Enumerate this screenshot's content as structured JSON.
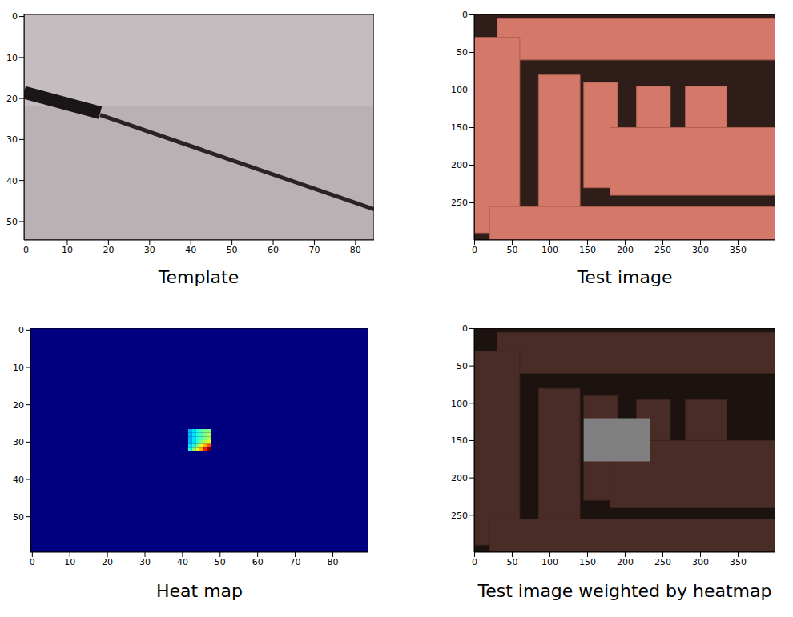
{
  "chart_data": [
    {
      "type": "image",
      "title": "Template",
      "xlim": [
        -0.5,
        84.5
      ],
      "ylim": [
        54.5,
        -0.5
      ],
      "xticks": [
        0,
        10,
        20,
        30,
        40,
        50,
        60,
        70,
        80
      ],
      "yticks": [
        0,
        10,
        20,
        30,
        40,
        50
      ]
    },
    {
      "type": "image",
      "title": "Test image",
      "xlim": [
        -0.5,
        399.5
      ],
      "ylim": [
        299.5,
        -0.5
      ],
      "xticks": [
        0,
        50,
        100,
        150,
        200,
        250,
        300,
        350
      ],
      "yticks": [
        0,
        50,
        100,
        150,
        200,
        250
      ]
    },
    {
      "type": "heatmap",
      "title": "Heat map",
      "xlim": [
        -0.5,
        89.5
      ],
      "ylim": [
        59.5,
        -0.5
      ],
      "xticks": [
        0,
        10,
        20,
        30,
        40,
        50,
        60,
        70,
        80
      ],
      "yticks": [
        0,
        10,
        20,
        30,
        40,
        50
      ],
      "zlim": [
        0,
        1
      ],
      "base_value": 0,
      "cells": {
        "x": [
          42,
          43,
          44,
          45,
          46,
          47
        ],
        "y": [
          27,
          28,
          29,
          30,
          31,
          32
        ],
        "values": [
          [
            0.3,
            0.35,
            0.4,
            0.45,
            0.5,
            0.5
          ],
          [
            0.3,
            0.35,
            0.4,
            0.45,
            0.5,
            0.55
          ],
          [
            0.3,
            0.35,
            0.4,
            0.45,
            0.5,
            0.55
          ],
          [
            0.3,
            0.35,
            0.4,
            0.5,
            0.55,
            0.6
          ],
          [
            0.35,
            0.4,
            0.5,
            0.6,
            0.7,
            0.8
          ],
          [
            0.4,
            0.5,
            0.6,
            0.7,
            0.85,
            1.0
          ]
        ]
      }
    },
    {
      "type": "image",
      "title": "Test image weighted by heatmap",
      "xlim": [
        -0.5,
        399.5
      ],
      "ylim": [
        299.5,
        -0.5
      ],
      "xticks": [
        0,
        50,
        100,
        150,
        200,
        250,
        300,
        350
      ],
      "yticks": [
        0,
        50,
        100,
        150,
        200,
        250
      ],
      "box": {
        "x": [
          145,
          233
        ],
        "y": [
          120,
          178
        ]
      }
    }
  ]
}
